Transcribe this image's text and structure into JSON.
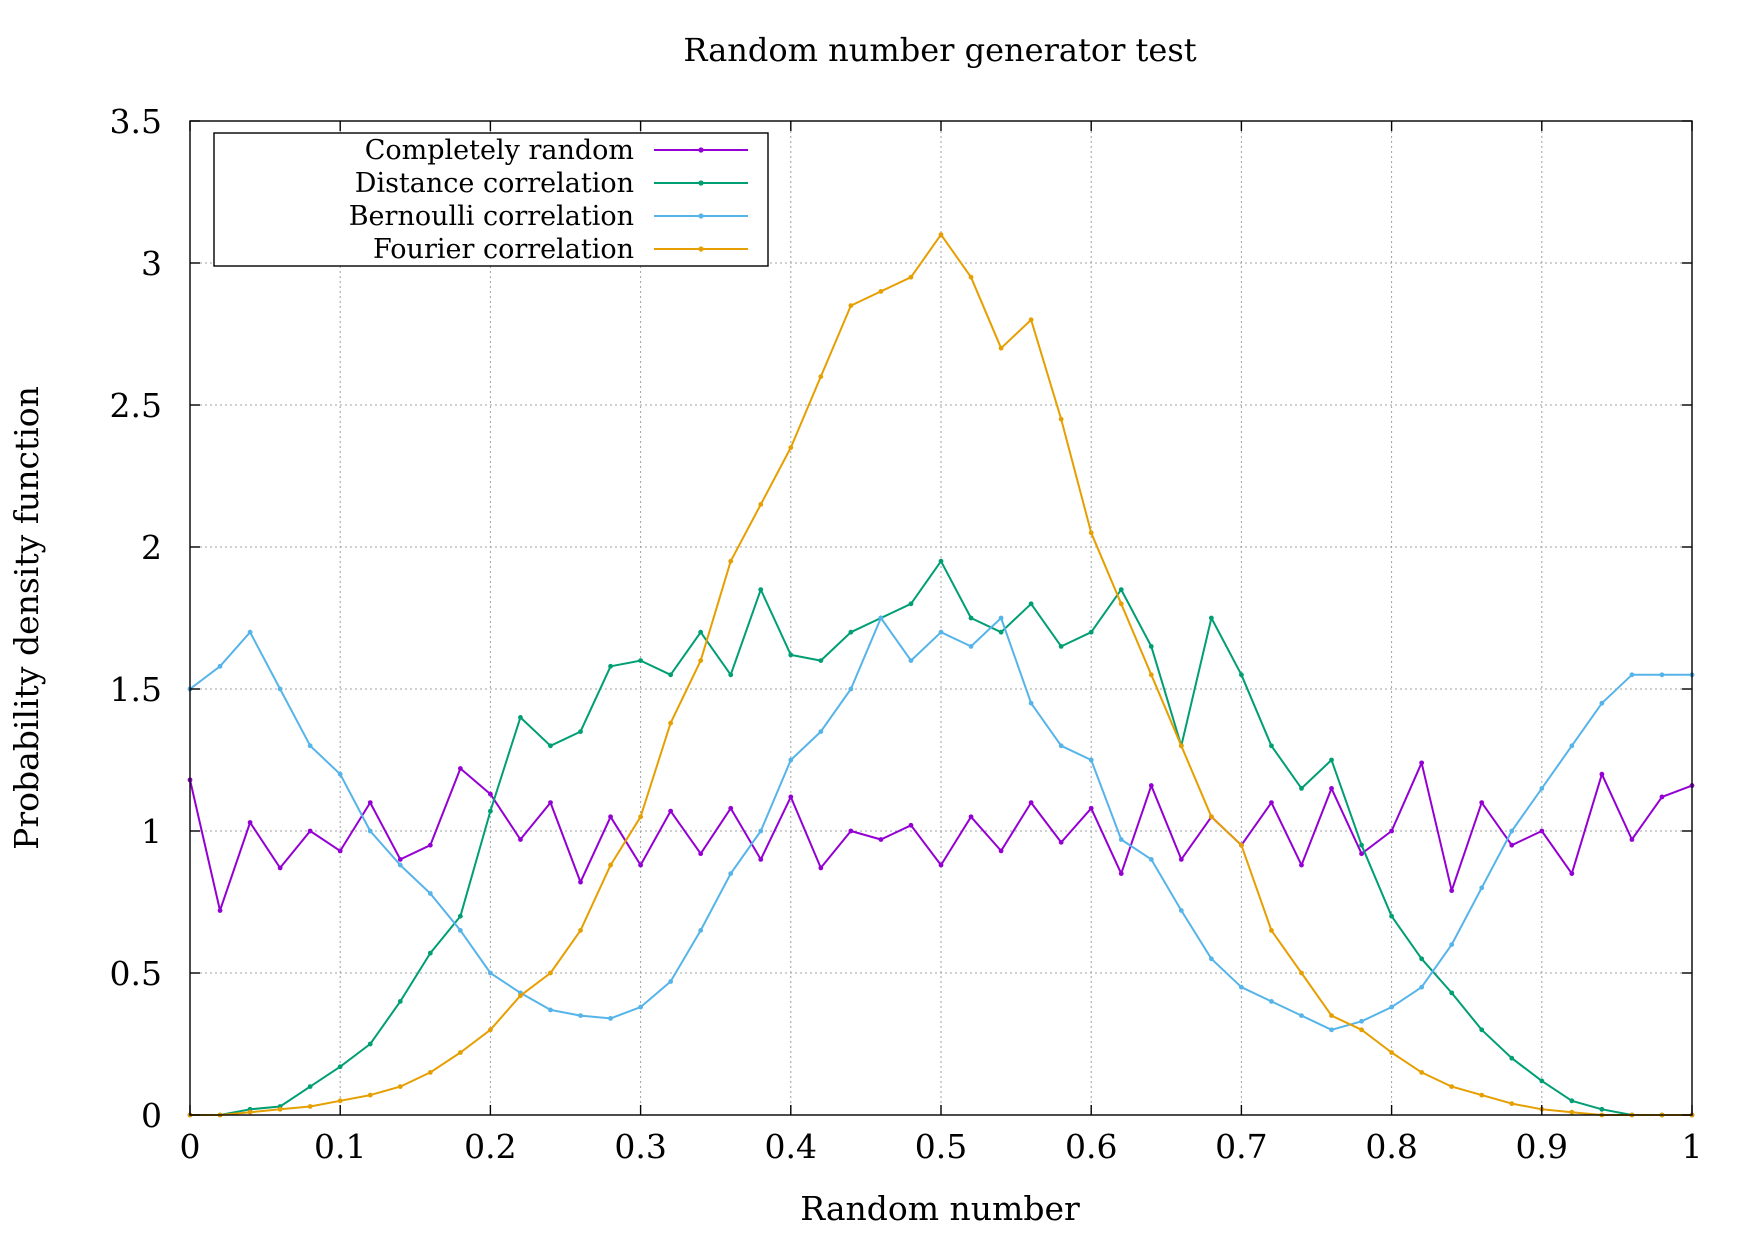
{
  "chart_data": {
    "type": "line",
    "title": "Random number generator test",
    "xlabel": "Random number",
    "ylabel": "Probability density function",
    "xlim": [
      0,
      1
    ],
    "ylim": [
      0,
      3.5
    ],
    "xticks": [
      "0",
      "0.1",
      "0.2",
      "0.3",
      "0.4",
      "0.5",
      "0.6",
      "0.7",
      "0.8",
      "0.9",
      "1"
    ],
    "yticks": [
      "0",
      "0.5",
      "1",
      "1.5",
      "2",
      "2.5",
      "3",
      "3.5"
    ],
    "grid": true,
    "legend_position": "top-left",
    "series": [
      {
        "name": "Completely random",
        "color": "#9400d3",
        "x": [
          0,
          0.02,
          0.04,
          0.06,
          0.08,
          0.1,
          0.12,
          0.14,
          0.16,
          0.18,
          0.2,
          0.22,
          0.24,
          0.26,
          0.28,
          0.3,
          0.32,
          0.34,
          0.36,
          0.38,
          0.4,
          0.42,
          0.44,
          0.46,
          0.48,
          0.5,
          0.52,
          0.54,
          0.56,
          0.58,
          0.6,
          0.62,
          0.64,
          0.66,
          0.68,
          0.7,
          0.72,
          0.74,
          0.76,
          0.78,
          0.8,
          0.82,
          0.84,
          0.86,
          0.88,
          0.9,
          0.92,
          0.94,
          0.96,
          0.98,
          1
        ],
        "y": [
          1.18,
          0.72,
          1.03,
          0.87,
          1.0,
          0.93,
          1.1,
          0.9,
          0.95,
          1.22,
          1.13,
          0.97,
          1.1,
          0.82,
          1.05,
          0.88,
          1.07,
          0.92,
          1.08,
          0.9,
          1.12,
          0.87,
          1.0,
          0.97,
          1.02,
          0.88,
          1.05,
          0.93,
          1.1,
          0.96,
          1.08,
          0.85,
          1.16,
          0.9,
          1.05,
          0.95,
          1.1,
          0.88,
          1.15,
          0.92,
          1.0,
          1.24,
          0.79,
          1.1,
          0.95,
          1.0,
          0.85,
          1.2,
          0.97,
          1.12,
          1.16
        ]
      },
      {
        "name": "Distance correlation",
        "color": "#009e73",
        "x": [
          0,
          0.02,
          0.04,
          0.06,
          0.08,
          0.1,
          0.12,
          0.14,
          0.16,
          0.18,
          0.2,
          0.22,
          0.24,
          0.26,
          0.28,
          0.3,
          0.32,
          0.34,
          0.36,
          0.38,
          0.4,
          0.42,
          0.44,
          0.46,
          0.48,
          0.5,
          0.52,
          0.54,
          0.56,
          0.58,
          0.6,
          0.62,
          0.64,
          0.66,
          0.68,
          0.7,
          0.72,
          0.74,
          0.76,
          0.78,
          0.8,
          0.82,
          0.84,
          0.86,
          0.88,
          0.9,
          0.92,
          0.94,
          0.96,
          0.98,
          1
        ],
        "y": [
          0,
          0,
          0.02,
          0.03,
          0.1,
          0.17,
          0.25,
          0.4,
          0.57,
          0.7,
          1.07,
          1.4,
          1.3,
          1.35,
          1.58,
          1.6,
          1.55,
          1.7,
          1.55,
          1.85,
          1.62,
          1.6,
          1.7,
          1.75,
          1.8,
          1.95,
          1.75,
          1.7,
          1.8,
          1.65,
          1.7,
          1.85,
          1.65,
          1.3,
          1.75,
          1.55,
          1.3,
          1.15,
          1.25,
          0.95,
          0.7,
          0.55,
          0.43,
          0.3,
          0.2,
          0.12,
          0.05,
          0.02,
          0,
          0,
          0
        ]
      },
      {
        "name": "Bernoulli correlation",
        "color": "#56b4e9",
        "x": [
          0,
          0.02,
          0.04,
          0.06,
          0.08,
          0.1,
          0.12,
          0.14,
          0.16,
          0.18,
          0.2,
          0.22,
          0.24,
          0.26,
          0.28,
          0.3,
          0.32,
          0.34,
          0.36,
          0.38,
          0.4,
          0.42,
          0.44,
          0.46,
          0.48,
          0.5,
          0.52,
          0.54,
          0.56,
          0.58,
          0.6,
          0.62,
          0.64,
          0.66,
          0.68,
          0.7,
          0.72,
          0.74,
          0.76,
          0.78,
          0.8,
          0.82,
          0.84,
          0.86,
          0.88,
          0.9,
          0.92,
          0.94,
          0.96,
          0.98,
          1
        ],
        "y": [
          1.5,
          1.58,
          1.7,
          1.5,
          1.3,
          1.2,
          1.0,
          0.88,
          0.78,
          0.65,
          0.5,
          0.43,
          0.37,
          0.35,
          0.34,
          0.38,
          0.47,
          0.65,
          0.85,
          1.0,
          1.25,
          1.35,
          1.5,
          1.75,
          1.6,
          1.7,
          1.65,
          1.75,
          1.45,
          1.3,
          1.25,
          0.97,
          0.9,
          0.72,
          0.55,
          0.45,
          0.4,
          0.35,
          0.3,
          0.33,
          0.38,
          0.45,
          0.6,
          0.8,
          1.0,
          1.15,
          1.3,
          1.45,
          1.55,
          1.55,
          1.55
        ]
      },
      {
        "name": "Fourier correlation",
        "color": "#e69f00",
        "x": [
          0,
          0.02,
          0.04,
          0.06,
          0.08,
          0.1,
          0.12,
          0.14,
          0.16,
          0.18,
          0.2,
          0.22,
          0.24,
          0.26,
          0.28,
          0.3,
          0.32,
          0.34,
          0.36,
          0.38,
          0.4,
          0.42,
          0.44,
          0.46,
          0.48,
          0.5,
          0.52,
          0.54,
          0.56,
          0.58,
          0.6,
          0.62,
          0.64,
          0.66,
          0.68,
          0.7,
          0.72,
          0.74,
          0.76,
          0.78,
          0.8,
          0.82,
          0.84,
          0.86,
          0.88,
          0.9,
          0.92,
          0.94,
          0.96,
          0.98,
          1
        ],
        "y": [
          0,
          0,
          0.01,
          0.02,
          0.03,
          0.05,
          0.07,
          0.1,
          0.15,
          0.22,
          0.3,
          0.42,
          0.5,
          0.65,
          0.88,
          1.05,
          1.38,
          1.6,
          1.95,
          2.15,
          2.35,
          2.6,
          2.85,
          2.9,
          2.95,
          3.1,
          2.95,
          2.7,
          2.8,
          2.45,
          2.05,
          1.8,
          1.55,
          1.3,
          1.05,
          0.95,
          0.65,
          0.5,
          0.35,
          0.3,
          0.22,
          0.15,
          0.1,
          0.07,
          0.04,
          0.02,
          0.01,
          0,
          0,
          0,
          0
        ]
      }
    ]
  }
}
